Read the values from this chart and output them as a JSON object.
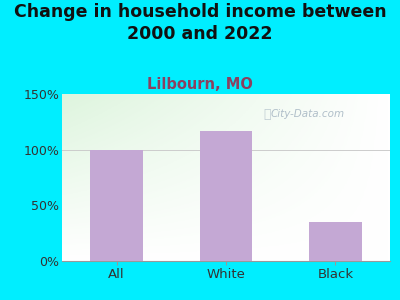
{
  "title": "Change in household income between\n2000 and 2022",
  "subtitle": "Lilbourn, MO",
  "categories": [
    "All",
    "White",
    "Black"
  ],
  "values": [
    100,
    117,
    35
  ],
  "bar_color": "#c4a8d4",
  "outer_bg": "#00eeff",
  "yticks": [
    0,
    50,
    100,
    150
  ],
  "ytick_labels": [
    "0%",
    "50%",
    "100%",
    "150%"
  ],
  "ylim": [
    0,
    150
  ],
  "title_fontsize": 12.5,
  "subtitle_fontsize": 10.5,
  "subtitle_color": "#8b4060",
  "tick_color": "#333333",
  "watermark_text": "City-Data.com",
  "watermark_color": "#a8b8c4"
}
